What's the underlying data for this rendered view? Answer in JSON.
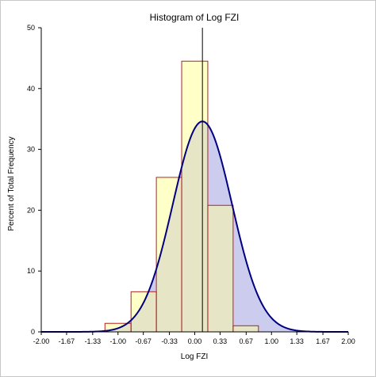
{
  "chart_data": {
    "type": "bar",
    "title": "Histogram of Log FZI",
    "xlabel": "Log FZI",
    "ylabel": "Percent of Total Frequency",
    "xlim": [
      -2.0,
      2.0
    ],
    "ylim": [
      0,
      50
    ],
    "x_ticks": [
      "-2.00",
      "-1.67",
      "-1.33",
      "-1.00",
      "-0.67",
      "-0.33",
      "0.00",
      "0.33",
      "0.67",
      "1.00",
      "1.33",
      "1.67",
      "2.00"
    ],
    "x_tick_values": [
      -2.0,
      -1.67,
      -1.33,
      -1.0,
      -0.67,
      -0.33,
      0.0,
      0.33,
      0.67,
      1.0,
      1.33,
      1.67,
      2.0
    ],
    "y_ticks": [
      "0",
      "10",
      "20",
      "30",
      "40",
      "50"
    ],
    "y_tick_values": [
      0,
      10,
      20,
      30,
      40,
      50
    ],
    "bins": [
      {
        "x0": -1.17,
        "x1": -0.83,
        "value": 1.4
      },
      {
        "x0": -0.83,
        "x1": -0.5,
        "value": 6.6
      },
      {
        "x0": -0.5,
        "x1": -0.17,
        "value": 25.4
      },
      {
        "x0": -0.17,
        "x1": 0.17,
        "value": 44.5
      },
      {
        "x0": 0.17,
        "x1": 0.5,
        "value": 20.8
      },
      {
        "x0": 0.5,
        "x1": 0.83,
        "value": 1.0
      }
    ],
    "curve": {
      "type": "normal",
      "mean": 0.1,
      "sd": 0.386,
      "peak": 34.6
    },
    "mean_line_x": 0.1,
    "grid": false,
    "colors": {
      "bar_fill": "#ffffc8",
      "bar_edge": "#b22222",
      "curve_line": "#000080",
      "curve_fill": "#ccccee",
      "overlap_fill": "#e6e6c6",
      "axis": "#000000"
    }
  }
}
